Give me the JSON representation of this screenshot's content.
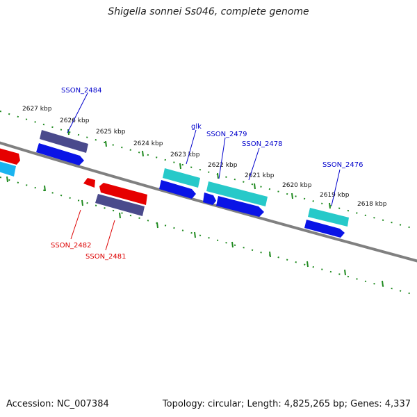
{
  "title": "Shigella sonnei Ss046, complete genome",
  "footer": {
    "accession": "Accession: NC_007384",
    "stats": "Topology: circular; Length: 4,825,265 bp; Genes: 4,337"
  },
  "colors": {
    "backbone": "#777777",
    "tick": "#1f8a1f",
    "forward_label": "#0000cc",
    "reverse_label": "#dd0000",
    "cds_blue": "#0a14e6",
    "cds_cyan": "#27c9c9",
    "cds_navy": "#4a4a8c",
    "cds_red": "#e60000",
    "cds_skyblue": "#1ab4f0"
  },
  "scale_labels": [
    "2627 kbp",
    "2626 kbp",
    "2625 kbp",
    "2624 kbp",
    "2623 kbp",
    "2622 kbp",
    "2621 kbp",
    "2620 kbp",
    "2619 kbp",
    "2618 kbp"
  ],
  "gene_labels": [
    {
      "text": "SSON_2484",
      "strand": "forward"
    },
    {
      "text": "glk",
      "strand": "forward"
    },
    {
      "text": "SSON_2479",
      "strand": "forward"
    },
    {
      "text": "SSON_2478",
      "strand": "forward"
    },
    {
      "text": "SSON_2476",
      "strand": "forward"
    },
    {
      "text": "SSON_2482",
      "strand": "reverse"
    },
    {
      "text": "SSON_2481",
      "strand": "reverse"
    }
  ]
}
